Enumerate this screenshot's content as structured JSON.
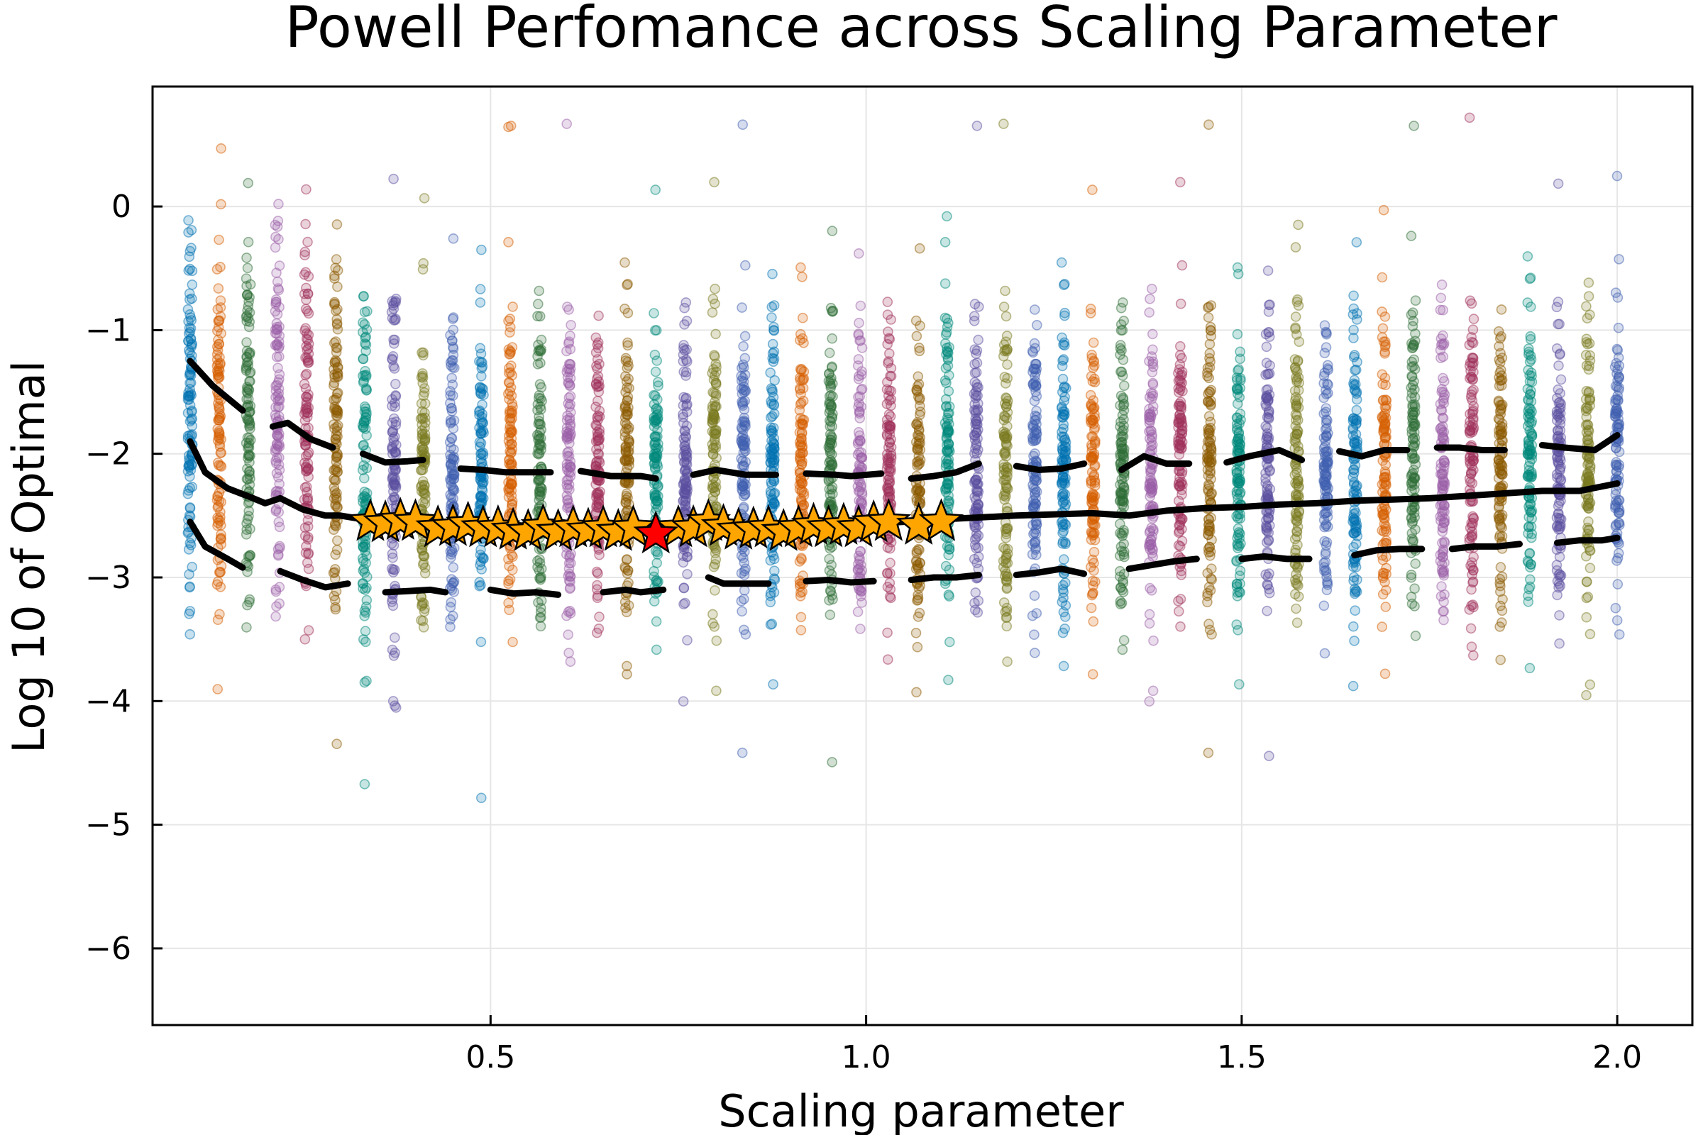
{
  "chart_data": {
    "type": "scatter",
    "title": "Powell Perfomance across Scaling Parameter",
    "xlabel": "Scaling parameter",
    "ylabel": "Log 10 of Optimal",
    "xlim": [
      0.05,
      2.1
    ],
    "ylim": [
      -6.62,
      0.97
    ],
    "grid": true,
    "legend": "none",
    "x_ticks": [
      {
        "value": 0.5,
        "label": "0.5"
      },
      {
        "value": 1.0,
        "label": "1.0"
      },
      {
        "value": 1.5,
        "label": "1.5"
      },
      {
        "value": 2.0,
        "label": "2.0"
      }
    ],
    "y_ticks": [
      {
        "value": 0,
        "label": "0"
      },
      {
        "value": -1,
        "label": "−1"
      },
      {
        "value": -2,
        "label": "−2"
      },
      {
        "value": -3,
        "label": "−3"
      },
      {
        "value": -4,
        "label": "−4"
      },
      {
        "value": -5,
        "label": "−5"
      },
      {
        "value": -6,
        "label": "−6"
      }
    ],
    "scatter_columns": {
      "x_start": 0.1,
      "x_end": 2.0,
      "count": 50,
      "typical_range": [
        -4.0,
        0.3
      ],
      "palette": [
        "#0072B2",
        "#D55E00",
        "#2E6E36",
        "#9B5FA8",
        "#A0305A",
        "#8B5A00",
        "#00897B",
        "#5A4FA0",
        "#7A7A20",
        "#3F5FB0"
      ]
    },
    "median_line": {
      "x": [
        0.1,
        0.12,
        0.15,
        0.18,
        0.2,
        0.22,
        0.25,
        0.28,
        0.3,
        0.35,
        0.4,
        0.5,
        0.6,
        0.7,
        0.8,
        0.9,
        1.0,
        1.1,
        1.2,
        1.3,
        1.35,
        1.4,
        1.45,
        1.5,
        1.55,
        1.6,
        1.65,
        1.7,
        1.75,
        1.8,
        1.85,
        1.9,
        1.95,
        2.0
      ],
      "y": [
        -1.9,
        -2.15,
        -2.28,
        -2.35,
        -2.4,
        -2.36,
        -2.45,
        -2.5,
        -2.5,
        -2.55,
        -2.58,
        -2.6,
        -2.62,
        -2.62,
        -2.6,
        -2.58,
        -2.57,
        -2.53,
        -2.5,
        -2.48,
        -2.5,
        -2.46,
        -2.44,
        -2.43,
        -2.41,
        -2.4,
        -2.38,
        -2.37,
        -2.36,
        -2.34,
        -2.32,
        -2.3,
        -2.3,
        -2.24
      ]
    },
    "upper_quantile_segments": [
      {
        "x": [
          0.1,
          0.13,
          0.15,
          0.17
        ],
        "y": [
          -1.25,
          -1.45,
          -1.55,
          -1.65
        ]
      },
      {
        "x": [
          0.21,
          0.23,
          0.26,
          0.29
        ],
        "y": [
          -1.78,
          -1.75,
          -1.88,
          -1.95
        ]
      },
      {
        "x": [
          0.33,
          0.36,
          0.39,
          0.41
        ],
        "y": [
          -2.0,
          -2.07,
          -2.06,
          -2.05
        ]
      },
      {
        "x": [
          0.46,
          0.49,
          0.52,
          0.58
        ],
        "y": [
          -2.12,
          -2.13,
          -2.15,
          -2.15
        ]
      },
      {
        "x": [
          0.62,
          0.66,
          0.7,
          0.72
        ],
        "y": [
          -2.14,
          -2.18,
          -2.18,
          -2.2
        ]
      },
      {
        "x": [
          0.77,
          0.8,
          0.84,
          0.88
        ],
        "y": [
          -2.17,
          -2.13,
          -2.17,
          -2.17
        ]
      },
      {
        "x": [
          0.92,
          0.96,
          0.98,
          1.02
        ],
        "y": [
          -2.16,
          -2.17,
          -2.18,
          -2.16
        ]
      },
      {
        "x": [
          1.06,
          1.09,
          1.12,
          1.15
        ],
        "y": [
          -2.2,
          -2.18,
          -2.15,
          -2.08
        ]
      },
      {
        "x": [
          1.2,
          1.23,
          1.26,
          1.29
        ],
        "y": [
          -2.1,
          -2.13,
          -2.12,
          -2.08
        ]
      },
      {
        "x": [
          1.34,
          1.37,
          1.4,
          1.43
        ],
        "y": [
          -2.13,
          -2.02,
          -2.08,
          -2.08
        ]
      },
      {
        "x": [
          1.48,
          1.51,
          1.55,
          1.58
        ],
        "y": [
          -2.07,
          -2.02,
          -1.97,
          -2.05
        ]
      },
      {
        "x": [
          1.63,
          1.66,
          1.69,
          1.72
        ],
        "y": [
          -1.98,
          -2.02,
          -1.97,
          -1.97
        ]
      },
      {
        "x": [
          1.76,
          1.79,
          1.82,
          1.85
        ],
        "y": [
          -1.95,
          -1.95,
          -1.97,
          -1.97
        ]
      },
      {
        "x": [
          1.9,
          1.93,
          1.97,
          2.0
        ],
        "y": [
          -1.93,
          -1.95,
          -1.97,
          -1.85
        ]
      }
    ],
    "lower_quantile_segments": [
      {
        "x": [
          0.1,
          0.12,
          0.15,
          0.17
        ],
        "y": [
          -2.55,
          -2.75,
          -2.85,
          -2.92
        ]
      },
      {
        "x": [
          0.22,
          0.25,
          0.28,
          0.31
        ],
        "y": [
          -2.95,
          -3.02,
          -3.08,
          -3.05
        ]
      },
      {
        "x": [
          0.36,
          0.39,
          0.42,
          0.44
        ],
        "y": [
          -3.12,
          -3.11,
          -3.1,
          -3.12
        ]
      },
      {
        "x": [
          0.5,
          0.53,
          0.56,
          0.59
        ],
        "y": [
          -3.1,
          -3.13,
          -3.12,
          -3.14
        ]
      },
      {
        "x": [
          0.65,
          0.68,
          0.7,
          0.73
        ],
        "y": [
          -3.12,
          -3.1,
          -3.12,
          -3.1
        ]
      },
      {
        "x": [
          0.79,
          0.81,
          0.84,
          0.87
        ],
        "y": [
          -3.0,
          -3.05,
          -3.05,
          -3.05
        ]
      },
      {
        "x": [
          0.92,
          0.95,
          0.98,
          1.01
        ],
        "y": [
          -3.03,
          -3.02,
          -3.04,
          -3.03
        ]
      },
      {
        "x": [
          1.06,
          1.09,
          1.12,
          1.15
        ],
        "y": [
          -3.02,
          -3.0,
          -3.0,
          -2.98
        ]
      },
      {
        "x": [
          1.2,
          1.23,
          1.26,
          1.29
        ],
        "y": [
          -2.98,
          -2.96,
          -2.93,
          -2.97
        ]
      },
      {
        "x": [
          1.35,
          1.38,
          1.41,
          1.44
        ],
        "y": [
          -2.93,
          -2.9,
          -2.87,
          -2.85
        ]
      },
      {
        "x": [
          1.5,
          1.53,
          1.56,
          1.59
        ],
        "y": [
          -2.85,
          -2.83,
          -2.85,
          -2.85
        ]
      },
      {
        "x": [
          1.65,
          1.68,
          1.71,
          1.74
        ],
        "y": [
          -2.82,
          -2.78,
          -2.77,
          -2.77
        ]
      },
      {
        "x": [
          1.78,
          1.81,
          1.84,
          1.87
        ],
        "y": [
          -2.77,
          -2.75,
          -2.75,
          -2.73
        ]
      },
      {
        "x": [
          1.92,
          1.95,
          1.98,
          2.0
        ],
        "y": [
          -2.72,
          -2.7,
          -2.7,
          -2.68
        ]
      }
    ],
    "star_markers": {
      "color": "#FFA500",
      "points": [
        {
          "x": 0.34,
          "y": -2.55
        },
        {
          "x": 0.36,
          "y": -2.56
        },
        {
          "x": 0.38,
          "y": -2.54
        },
        {
          "x": 0.4,
          "y": -2.55
        },
        {
          "x": 0.43,
          "y": -2.6
        },
        {
          "x": 0.45,
          "y": -2.59
        },
        {
          "x": 0.47,
          "y": -2.57
        },
        {
          "x": 0.49,
          "y": -2.6
        },
        {
          "x": 0.51,
          "y": -2.6
        },
        {
          "x": 0.53,
          "y": -2.62
        },
        {
          "x": 0.55,
          "y": -2.63
        },
        {
          "x": 0.57,
          "y": -2.59
        },
        {
          "x": 0.59,
          "y": -2.63
        },
        {
          "x": 0.61,
          "y": -2.6
        },
        {
          "x": 0.63,
          "y": -2.62
        },
        {
          "x": 0.65,
          "y": -2.6
        },
        {
          "x": 0.67,
          "y": -2.63
        },
        {
          "x": 0.69,
          "y": -2.6
        },
        {
          "x": 0.75,
          "y": -2.6
        },
        {
          "x": 0.77,
          "y": -2.6
        },
        {
          "x": 0.79,
          "y": -2.55
        },
        {
          "x": 0.81,
          "y": -2.59
        },
        {
          "x": 0.83,
          "y": -2.62
        },
        {
          "x": 0.85,
          "y": -2.61
        },
        {
          "x": 0.87,
          "y": -2.6
        },
        {
          "x": 0.89,
          "y": -2.63
        },
        {
          "x": 0.91,
          "y": -2.6
        },
        {
          "x": 0.93,
          "y": -2.58
        },
        {
          "x": 0.95,
          "y": -2.6
        },
        {
          "x": 0.97,
          "y": -2.58
        },
        {
          "x": 0.99,
          "y": -2.6
        },
        {
          "x": 1.01,
          "y": -2.56
        },
        {
          "x": 1.03,
          "y": -2.55
        },
        {
          "x": 1.07,
          "y": -2.58
        },
        {
          "x": 1.1,
          "y": -2.55
        }
      ]
    },
    "best_marker": {
      "x": 0.72,
      "y": -2.65,
      "color": "#FF0000"
    }
  }
}
